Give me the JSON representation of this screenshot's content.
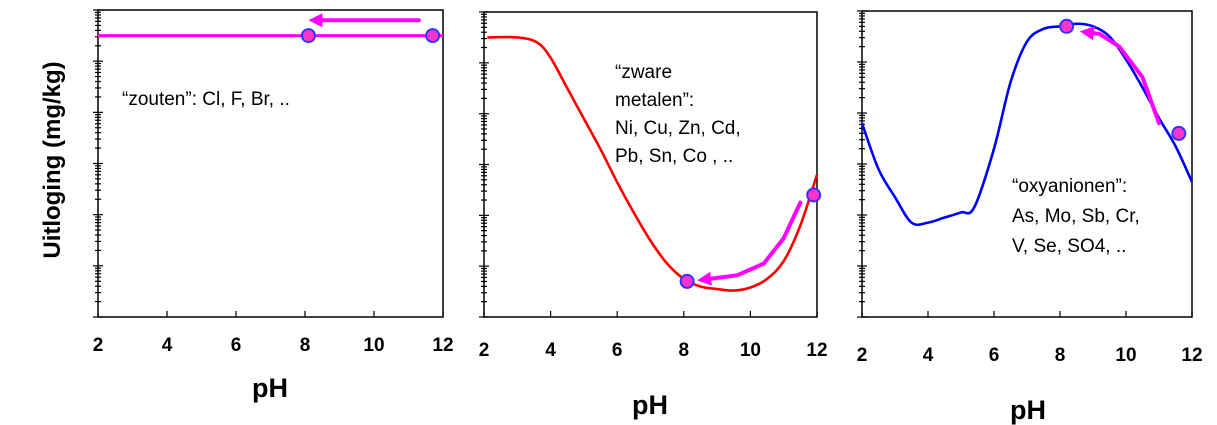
{
  "chart_data": [
    {
      "type": "line",
      "xlabel": "pH",
      "ylabel": "Uitloging (mg/kg)",
      "xlim": [
        2,
        12
      ],
      "xticks": [
        "2",
        "4",
        "6",
        "8",
        "10",
        "12"
      ],
      "y_scale": "log",
      "y_axis_numbers_shown": false,
      "ylim_decades": [
        0,
        6
      ],
      "series": [
        {
          "color": "#ff00ff",
          "x": [
            2,
            12
          ],
          "y_decades": [
            5.5,
            5.5
          ]
        }
      ],
      "points": [
        {
          "x": 8.1,
          "y_decades": 5.5
        },
        {
          "x": 11.7,
          "y_decades": 5.5
        }
      ],
      "arrows": [
        {
          "color": "#ff00ff",
          "from": [
            11.3,
            5.8
          ],
          "to": [
            8.1,
            5.8
          ]
        }
      ],
      "annotations": [
        "“zouten”: Cl, F, Br, .."
      ]
    },
    {
      "type": "line",
      "xlabel": "pH",
      "xlim": [
        2,
        12
      ],
      "xticks": [
        "2",
        "4",
        "6",
        "8",
        "10",
        "12"
      ],
      "y_scale": "log",
      "y_axis_numbers_shown": false,
      "ylim_decades": [
        0,
        6
      ],
      "series": [
        {
          "color": "#ff0000",
          "x": [
            2.1,
            3,
            3.6,
            4,
            4.5,
            5,
            5.5,
            6,
            6.5,
            7,
            7.5,
            8,
            8.5,
            9,
            9.5,
            10,
            10.5,
            11,
            11.5,
            12
          ],
          "y_decades": [
            5.5,
            5.5,
            5.4,
            5.1,
            4.5,
            3.9,
            3.3,
            2.65,
            2.05,
            1.5,
            1.05,
            0.75,
            0.6,
            0.55,
            0.52,
            0.58,
            0.75,
            1.1,
            1.8,
            2.8
          ]
        }
      ],
      "points": [
        {
          "x": 8.1,
          "y_decades": 0.7
        },
        {
          "x": 11.9,
          "y_decades": 2.4
        }
      ],
      "arrows": [
        {
          "color": "#ff00ff",
          "path_x": [
            11.5,
            11.0,
            10.4,
            9.6,
            8.4
          ],
          "path_y_decades": [
            2.25,
            1.55,
            1.05,
            0.82,
            0.72
          ]
        }
      ],
      "annotations": [
        "“zware",
        "metalen”:",
        "Ni, Cu, Zn, Cd,",
        "Pb, Sn, Co , .."
      ]
    },
    {
      "type": "line",
      "xlabel": "pH",
      "xlim": [
        2,
        12
      ],
      "xticks": [
        "2",
        "4",
        "6",
        "8",
        "10",
        "12"
      ],
      "y_scale": "log",
      "y_axis_numbers_shown": false,
      "ylim_decades": [
        0,
        6
      ],
      "series": [
        {
          "color": "#0000ff",
          "x": [
            2,
            2.5,
            3,
            3.5,
            4,
            4.5,
            5,
            5.4,
            6,
            6.5,
            7,
            7.5,
            8,
            8.5,
            9,
            9.5,
            10,
            10.5,
            11,
            11.5,
            12
          ],
          "y_decades": [
            3.8,
            2.9,
            2.35,
            1.85,
            1.85,
            1.95,
            2.05,
            2.15,
            3.3,
            4.6,
            5.4,
            5.65,
            5.7,
            5.75,
            5.7,
            5.5,
            5.05,
            4.5,
            3.9,
            3.35,
            2.65
          ]
        }
      ],
      "points": [
        {
          "x": 8.2,
          "y_decades": 5.7
        },
        {
          "x": 11.6,
          "y_decades": 3.6
        }
      ],
      "arrows": [
        {
          "color": "#ff00ff",
          "path_x": [
            11.0,
            10.5,
            9.8,
            9.2,
            8.6
          ],
          "path_y_decades": [
            3.8,
            4.7,
            5.3,
            5.55,
            5.6
          ]
        }
      ],
      "annotations": [
        "“oxyanionen”:",
        "As, Mo, Sb, Cr,",
        "V, Se, SO4, .."
      ]
    }
  ]
}
